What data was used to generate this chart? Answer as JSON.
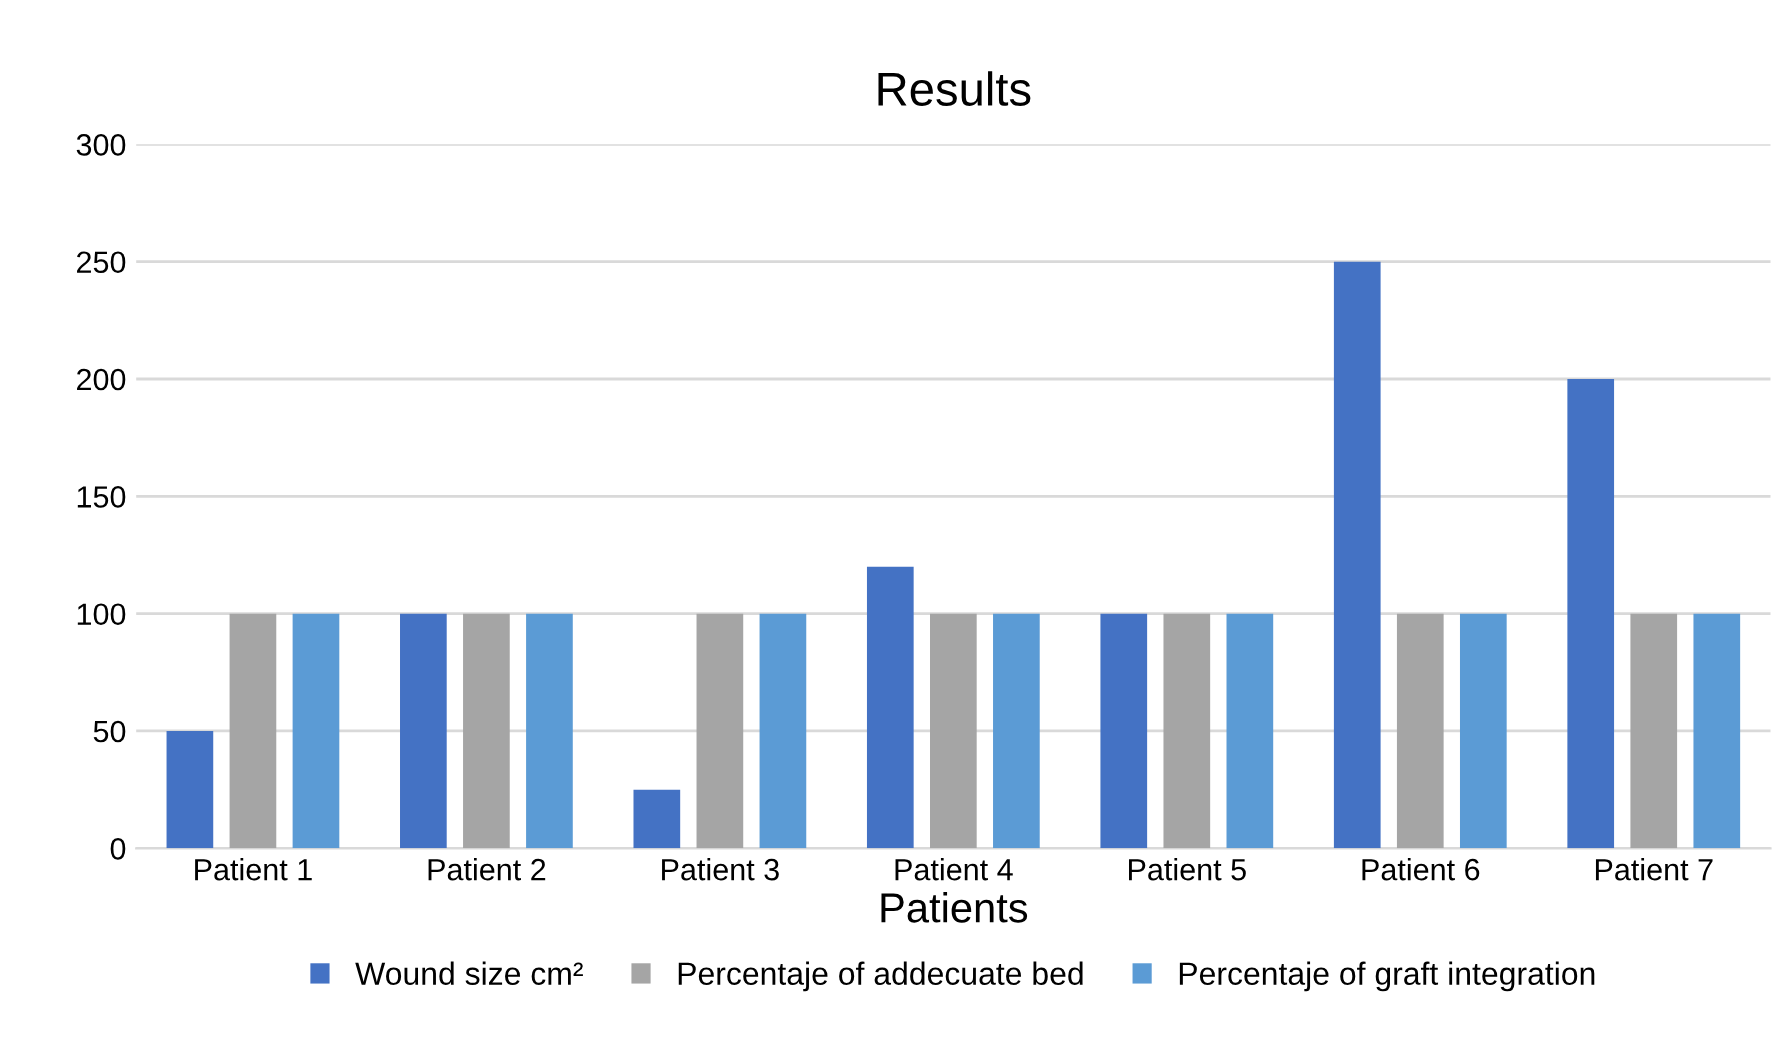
{
  "chart_data": {
    "type": "bar",
    "title": "Results",
    "xlabel": "Patients",
    "categories": [
      "Patient 1",
      "Patient 2",
      "Patient 3",
      "Patient 4",
      "Patient 5",
      "Patient 6",
      "Patient 7"
    ],
    "series": [
      {
        "name": "Wound size cm²",
        "color": "#4472c4",
        "values": [
          50,
          100,
          25,
          120,
          100,
          250,
          200
        ]
      },
      {
        "name": "Percentaje of addecuate bed",
        "color": "#a5a5a5",
        "values": [
          100,
          100,
          100,
          100,
          100,
          100,
          100
        ]
      },
      {
        "name": "Percentaje of graft integration",
        "color": "#5b9bd5",
        "values": [
          100,
          100,
          100,
          100,
          100,
          100,
          100
        ]
      }
    ],
    "ylim": [
      0,
      300
    ],
    "yticks": [
      0,
      50,
      100,
      150,
      200,
      250,
      300
    ],
    "grid": "y",
    "legend": "bottom"
  }
}
